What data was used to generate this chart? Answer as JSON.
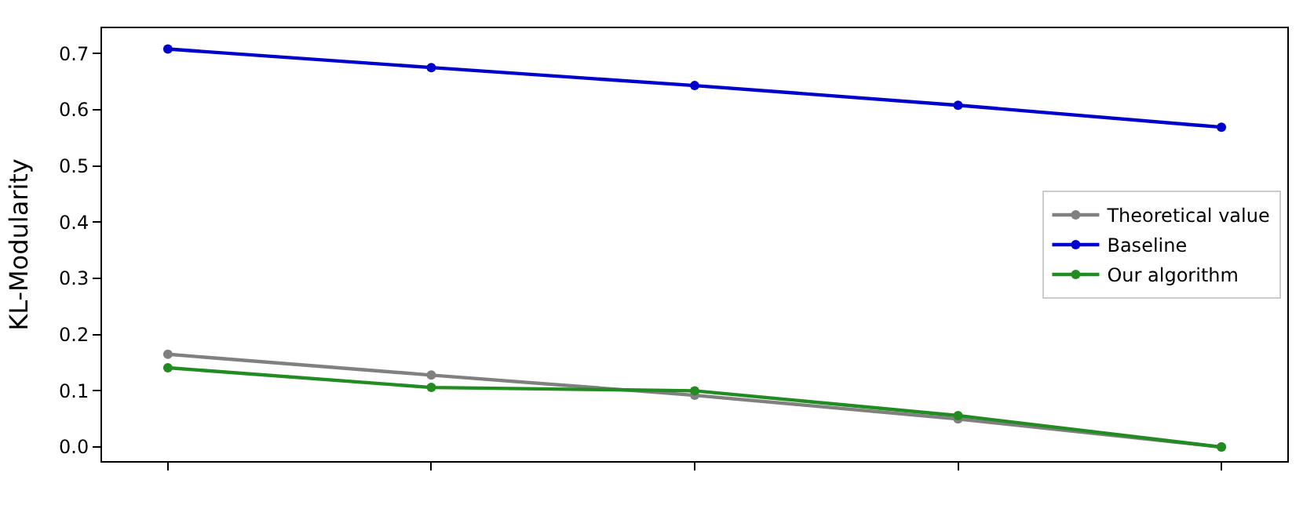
{
  "chart_data": {
    "type": "line",
    "ylabel": "KL-Modularity",
    "categories": [
      null,
      null,
      null,
      null,
      null
    ],
    "series": [
      {
        "name": "Theoretical value",
        "color": "#808080",
        "values": [
          0.165,
          0.128,
          0.092,
          0.05,
          0.0
        ]
      },
      {
        "name": "Baseline",
        "color": "#0000cd",
        "values": [
          0.708,
          0.675,
          0.643,
          0.608,
          0.569
        ]
      },
      {
        "name": "Our algorithm",
        "color": "#228b22",
        "values": [
          0.141,
          0.106,
          0.1,
          0.056,
          0.0
        ]
      }
    ],
    "ylim": [
      -0.025,
      0.745
    ],
    "yticks": [
      {
        "value": 0,
        "label": "0.0"
      },
      0.1,
      0.2,
      0.3,
      0.4,
      0.5,
      0.6,
      0.7
    ],
    "tick_labels": "y",
    "legend": "right",
    "marker": "circle",
    "line_style": "solid"
  }
}
